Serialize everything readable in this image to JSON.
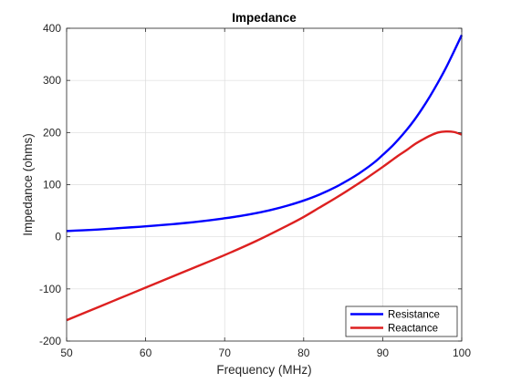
{
  "chart_data": {
    "type": "line",
    "title": "Impedance",
    "xlabel": "Frequency (MHz)",
    "ylabel": "Impedance (ohms)",
    "xlim": [
      50,
      100
    ],
    "ylim": [
      -200,
      400
    ],
    "xticks": [
      50,
      60,
      70,
      80,
      90,
      100
    ],
    "yticks": [
      -200,
      -100,
      0,
      100,
      200,
      300,
      400
    ],
    "grid": true,
    "legend_position": "bottom-right",
    "series": [
      {
        "name": "Resistance",
        "color": "#0000ff",
        "x": [
          50,
          52,
          54,
          56,
          58,
          60,
          62,
          64,
          66,
          68,
          70,
          72,
          74,
          76,
          78,
          80,
          82,
          84,
          86,
          87,
          88,
          89,
          90,
          91,
          92,
          93,
          94,
          95,
          96,
          97,
          98,
          99,
          100
        ],
        "y": [
          11,
          12.5,
          14,
          16,
          18,
          20,
          22.5,
          25,
          28,
          31.5,
          35.5,
          40,
          45.5,
          52,
          60,
          69.5,
          81,
          95,
          112,
          121.5,
          132,
          143.5,
          157,
          171,
          187,
          204.5,
          224,
          246,
          270,
          296,
          324,
          355,
          387
        ]
      },
      {
        "name": "Reactance",
        "color": "#dd2020",
        "x": [
          50,
          54,
          58,
          62,
          66,
          70,
          74,
          78,
          80,
          82,
          84,
          86,
          88,
          90,
          91,
          92,
          93,
          94,
          95,
          96,
          97,
          98,
          99,
          100
        ],
        "y": [
          -160,
          -135,
          -110,
          -85,
          -60,
          -35,
          -8,
          22,
          38,
          56,
          74,
          93,
          113,
          134,
          145,
          156,
          166,
          177,
          186,
          194,
          200,
          202,
          201,
          196
        ]
      }
    ]
  }
}
